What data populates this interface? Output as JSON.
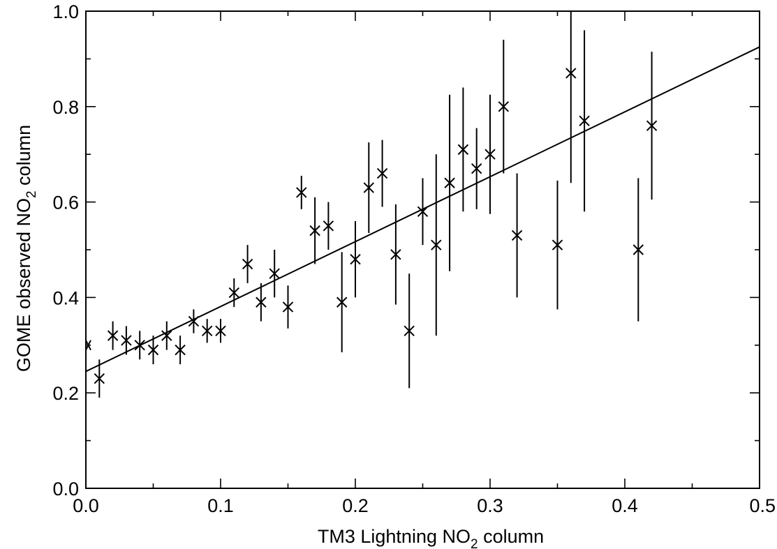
{
  "chart_data": {
    "type": "scatter",
    "xlabel": "TM3 Lightning NO2 column",
    "ylabel": "GOME observed NO2 column",
    "xlim": [
      0.0,
      0.5
    ],
    "ylim": [
      0.0,
      1.0
    ],
    "x_ticks": [
      "0.0",
      "0.1",
      "0.2",
      "0.3",
      "0.4",
      "0.5"
    ],
    "y_ticks": [
      "0.0",
      "0.2",
      "0.4",
      "0.6",
      "0.8",
      "1.0"
    ],
    "grid": false,
    "legend": "none",
    "fit_line": {
      "intercept": 0.245,
      "slope": 1.36
    },
    "points": [
      {
        "x": 0.0,
        "y": 0.3,
        "err": 0.0
      },
      {
        "x": 0.01,
        "y": 0.23,
        "err": 0.04
      },
      {
        "x": 0.02,
        "y": 0.32,
        "err": 0.03
      },
      {
        "x": 0.03,
        "y": 0.31,
        "err": 0.03
      },
      {
        "x": 0.04,
        "y": 0.3,
        "err": 0.03
      },
      {
        "x": 0.05,
        "y": 0.29,
        "err": 0.03
      },
      {
        "x": 0.06,
        "y": 0.32,
        "err": 0.03
      },
      {
        "x": 0.07,
        "y": 0.29,
        "err": 0.03
      },
      {
        "x": 0.08,
        "y": 0.35,
        "err": 0.025
      },
      {
        "x": 0.09,
        "y": 0.33,
        "err": 0.025
      },
      {
        "x": 0.1,
        "y": 0.33,
        "err": 0.025
      },
      {
        "x": 0.11,
        "y": 0.41,
        "err": 0.03
      },
      {
        "x": 0.12,
        "y": 0.47,
        "err": 0.04
      },
      {
        "x": 0.13,
        "y": 0.39,
        "err": 0.04
      },
      {
        "x": 0.14,
        "y": 0.45,
        "err": 0.05
      },
      {
        "x": 0.15,
        "y": 0.38,
        "err": 0.045
      },
      {
        "x": 0.16,
        "y": 0.62,
        "err": 0.035
      },
      {
        "x": 0.17,
        "y": 0.54,
        "err": 0.07
      },
      {
        "x": 0.18,
        "y": 0.55,
        "err": 0.05
      },
      {
        "x": 0.19,
        "y": 0.39,
        "err": 0.105
      },
      {
        "x": 0.2,
        "y": 0.48,
        "err": 0.08
      },
      {
        "x": 0.21,
        "y": 0.63,
        "err": 0.095
      },
      {
        "x": 0.22,
        "y": 0.66,
        "err": 0.07
      },
      {
        "x": 0.23,
        "y": 0.49,
        "err": 0.105
      },
      {
        "x": 0.24,
        "y": 0.33,
        "err": 0.12
      },
      {
        "x": 0.25,
        "y": 0.58,
        "err": 0.07
      },
      {
        "x": 0.26,
        "y": 0.51,
        "err": 0.19
      },
      {
        "x": 0.27,
        "y": 0.64,
        "err": 0.185
      },
      {
        "x": 0.28,
        "y": 0.71,
        "err": 0.13
      },
      {
        "x": 0.29,
        "y": 0.67,
        "err": 0.085
      },
      {
        "x": 0.3,
        "y": 0.7,
        "err": 0.125
      },
      {
        "x": 0.31,
        "y": 0.8,
        "err": 0.14
      },
      {
        "x": 0.32,
        "y": 0.53,
        "err": 0.13
      },
      {
        "x": 0.35,
        "y": 0.51,
        "err": 0.135
      },
      {
        "x": 0.36,
        "y": 0.87,
        "err": 0.23
      },
      {
        "x": 0.37,
        "y": 0.77,
        "err": 0.19
      },
      {
        "x": 0.41,
        "y": 0.5,
        "err": 0.15
      },
      {
        "x": 0.42,
        "y": 0.76,
        "err": 0.155
      }
    ]
  }
}
